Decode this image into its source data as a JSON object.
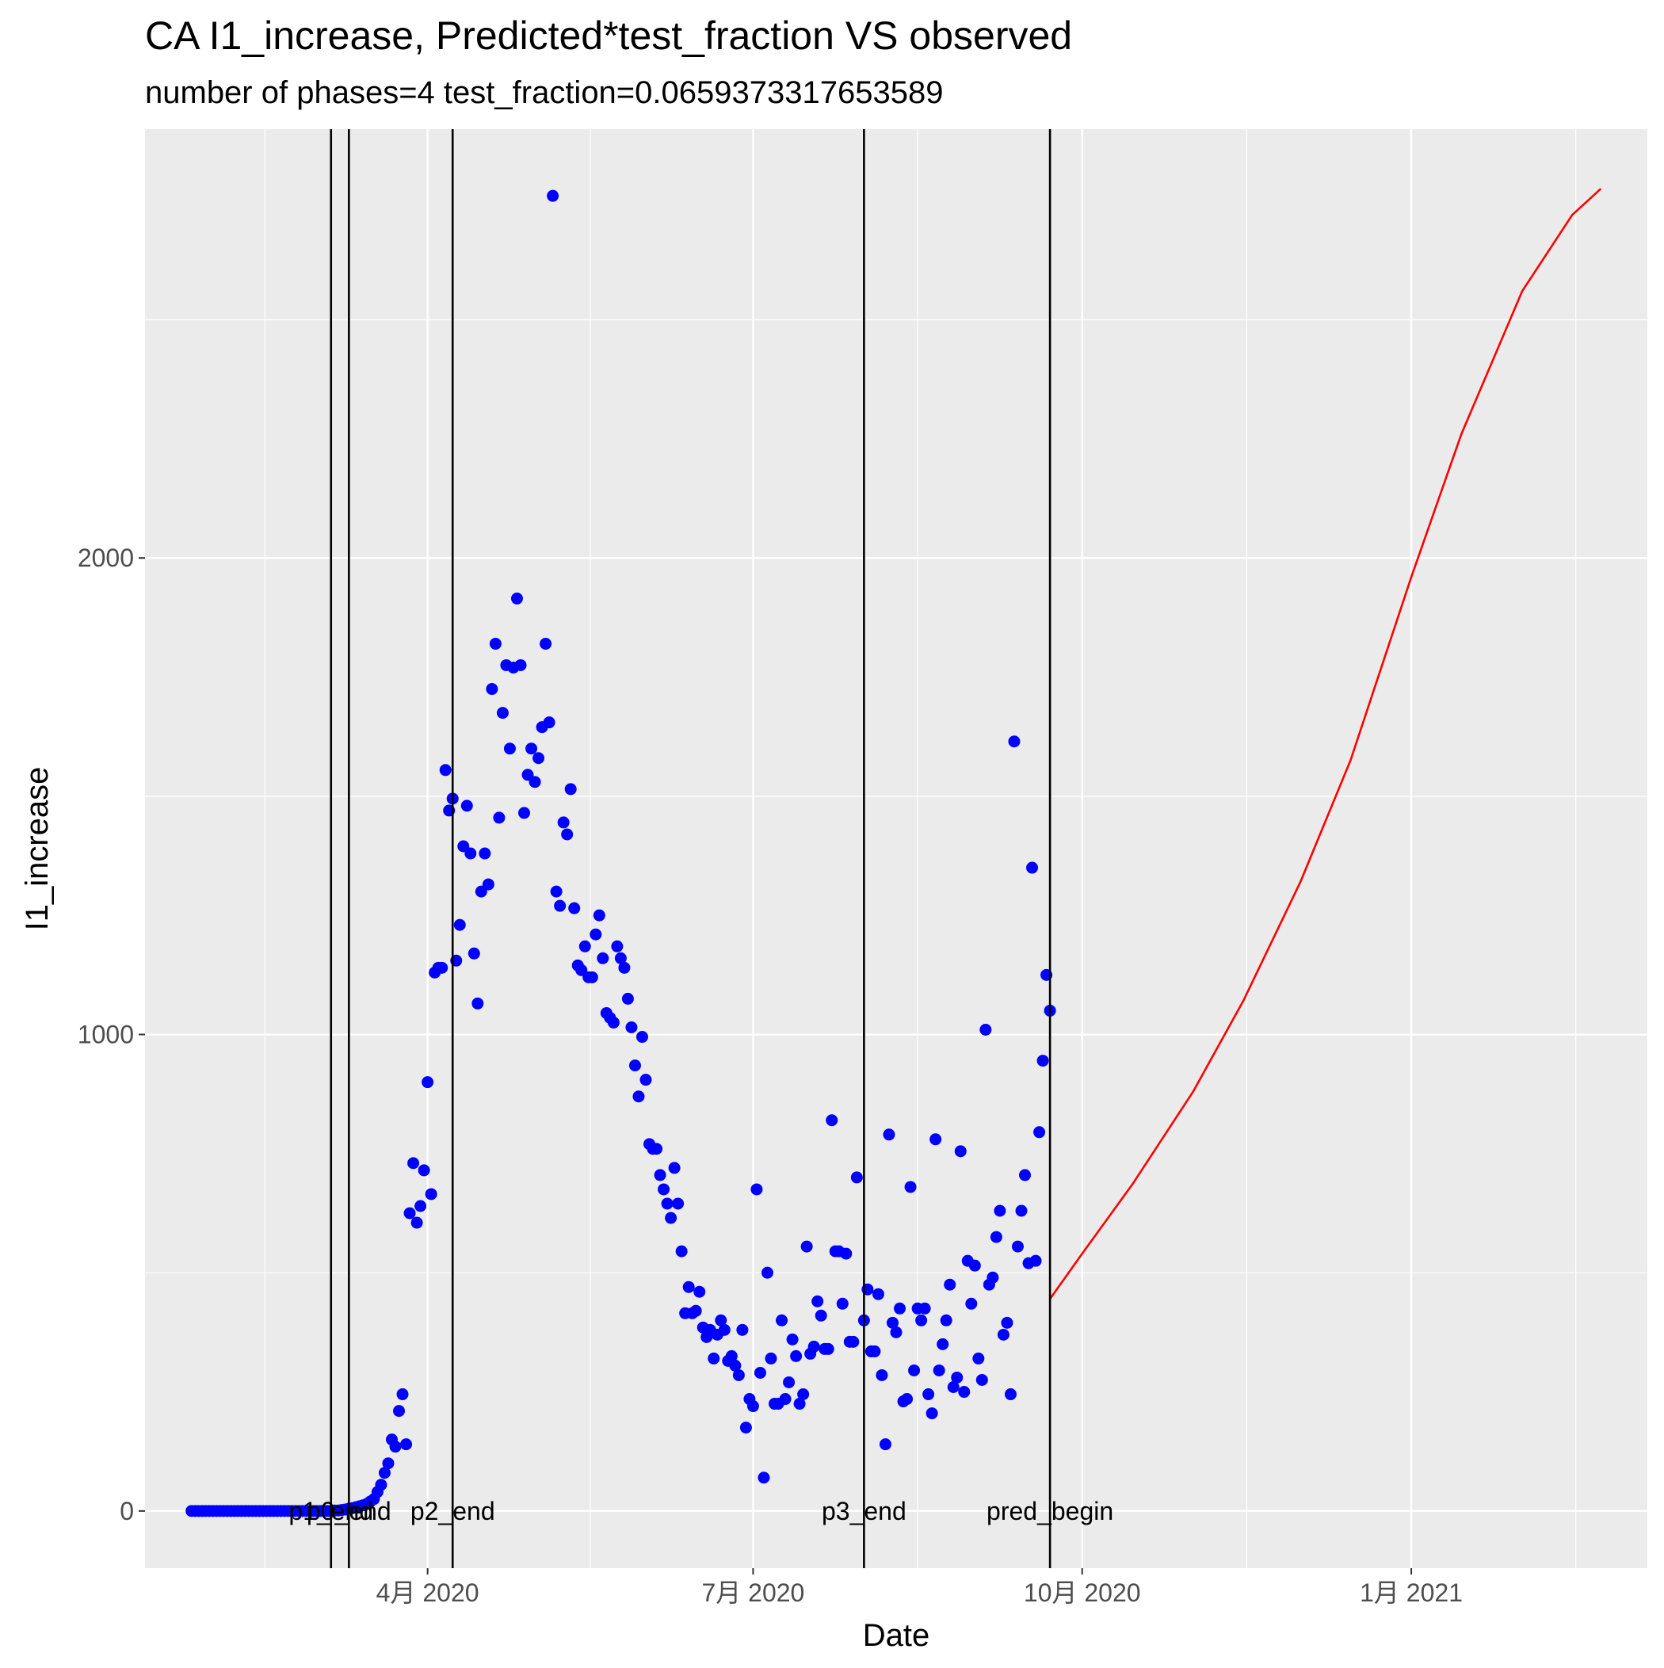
{
  "chart_data": {
    "type": "scatter",
    "title": "CA I1_increase, Predicted*test_fraction VS observed",
    "subtitle": "number of phases=4   test_fraction=0.0659373317653589",
    "xlabel": "Date",
    "ylabel": "I1_increase",
    "x_ticks": [
      {
        "date": "2020-04-01",
        "label": "4月 2020"
      },
      {
        "date": "2020-07-01",
        "label": "7月 2020"
      },
      {
        "date": "2020-10-01",
        "label": "10月 2020"
      },
      {
        "date": "2021-01-01",
        "label": "1月 2021"
      }
    ],
    "y_ticks": [
      0,
      1000,
      2000
    ],
    "xlim": [
      "2020-01-13",
      "2021-03-08"
    ],
    "ylim": [
      -120,
      2900
    ],
    "grid": true,
    "colors": {
      "panel": "#ebebeb",
      "grid": "#ffffff",
      "observed": "#0000ff",
      "predicted": "#ff0000",
      "vlines": "#000000"
    },
    "vlines": [
      {
        "date": "2020-03-05",
        "label": "p1_end"
      },
      {
        "date": "2020-03-10",
        "label": "p0_end"
      },
      {
        "date": "2020-04-08",
        "label": "p2_end"
      },
      {
        "date": "2020-08-01",
        "label": "p3_end"
      },
      {
        "date": "2020-09-22",
        "label": "pred_begin"
      }
    ],
    "series": [
      {
        "type": "scatter",
        "color": "#0000ff",
        "points": [
          [
            "2020-01-26",
            0
          ],
          [
            "2020-01-27",
            0
          ],
          [
            "2020-01-28",
            0
          ],
          [
            "2020-01-29",
            0
          ],
          [
            "2020-01-30",
            0
          ],
          [
            "2020-01-31",
            0
          ],
          [
            "2020-02-01",
            0
          ],
          [
            "2020-02-02",
            0
          ],
          [
            "2020-02-03",
            0
          ],
          [
            "2020-02-04",
            0
          ],
          [
            "2020-02-05",
            0
          ],
          [
            "2020-02-06",
            0
          ],
          [
            "2020-02-07",
            0
          ],
          [
            "2020-02-08",
            0
          ],
          [
            "2020-02-09",
            0
          ],
          [
            "2020-02-10",
            0
          ],
          [
            "2020-02-11",
            0
          ],
          [
            "2020-02-12",
            0
          ],
          [
            "2020-02-13",
            0
          ],
          [
            "2020-02-14",
            0
          ],
          [
            "2020-02-15",
            0
          ],
          [
            "2020-02-16",
            0
          ],
          [
            "2020-02-17",
            0
          ],
          [
            "2020-02-18",
            0
          ],
          [
            "2020-02-19",
            0
          ],
          [
            "2020-02-20",
            0
          ],
          [
            "2020-02-21",
            0
          ],
          [
            "2020-02-22",
            0
          ],
          [
            "2020-02-23",
            0
          ],
          [
            "2020-02-24",
            0
          ],
          [
            "2020-02-25",
            0
          ],
          [
            "2020-02-26",
            0
          ],
          [
            "2020-02-27",
            0
          ],
          [
            "2020-02-28",
            0
          ],
          [
            "2020-02-29",
            0
          ],
          [
            "2020-03-01",
            0
          ],
          [
            "2020-03-02",
            0
          ],
          [
            "2020-03-03",
            0
          ],
          [
            "2020-03-04",
            0
          ],
          [
            "2020-03-05",
            0
          ],
          [
            "2020-03-06",
            1
          ],
          [
            "2020-03-07",
            1
          ],
          [
            "2020-03-08",
            2
          ],
          [
            "2020-03-09",
            3
          ],
          [
            "2020-03-10",
            5
          ],
          [
            "2020-03-11",
            6
          ],
          [
            "2020-03-12",
            8
          ],
          [
            "2020-03-13",
            10
          ],
          [
            "2020-03-14",
            12
          ],
          [
            "2020-03-15",
            15
          ],
          [
            "2020-03-16",
            20
          ],
          [
            "2020-03-17",
            25
          ],
          [
            "2020-03-18",
            40
          ],
          [
            "2020-03-19",
            55
          ],
          [
            "2020-03-20",
            80
          ],
          [
            "2020-03-21",
            100
          ],
          [
            "2020-03-22",
            150
          ],
          [
            "2020-03-23",
            135
          ],
          [
            "2020-03-24",
            210
          ],
          [
            "2020-03-25",
            245
          ],
          [
            "2020-03-26",
            140
          ],
          [
            "2020-03-27",
            625
          ],
          [
            "2020-03-28",
            730
          ],
          [
            "2020-03-29",
            605
          ],
          [
            "2020-03-30",
            640
          ],
          [
            "2020-03-31",
            715
          ],
          [
            "2020-04-01",
            900
          ],
          [
            "2020-04-02",
            665
          ],
          [
            "2020-04-03",
            1130
          ],
          [
            "2020-04-04",
            1140
          ],
          [
            "2020-04-05",
            1140
          ],
          [
            "2020-04-06",
            1555
          ],
          [
            "2020-04-07",
            1470
          ],
          [
            "2020-04-08",
            1495
          ],
          [
            "2020-04-09",
            1155
          ],
          [
            "2020-04-10",
            1230
          ],
          [
            "2020-04-11",
            1395
          ],
          [
            "2020-04-12",
            1480
          ],
          [
            "2020-04-13",
            1380
          ],
          [
            "2020-04-14",
            1170
          ],
          [
            "2020-04-15",
            1065
          ],
          [
            "2020-04-16",
            1300
          ],
          [
            "2020-04-17",
            1380
          ],
          [
            "2020-04-18",
            1315
          ],
          [
            "2020-04-19",
            1725
          ],
          [
            "2020-04-20",
            1820
          ],
          [
            "2020-04-21",
            1455
          ],
          [
            "2020-04-22",
            1675
          ],
          [
            "2020-04-23",
            1775
          ],
          [
            "2020-04-24",
            1600
          ],
          [
            "2020-04-25",
            1770
          ],
          [
            "2020-04-26",
            1915
          ],
          [
            "2020-04-27",
            1775
          ],
          [
            "2020-04-28",
            1465
          ],
          [
            "2020-04-29",
            1545
          ],
          [
            "2020-04-30",
            1600
          ],
          [
            "2020-05-01",
            1530
          ],
          [
            "2020-05-02",
            1580
          ],
          [
            "2020-05-03",
            1645
          ],
          [
            "2020-05-04",
            1820
          ],
          [
            "2020-05-05",
            1655
          ],
          [
            "2020-05-06",
            2760
          ],
          [
            "2020-05-07",
            1300
          ],
          [
            "2020-05-08",
            1270
          ],
          [
            "2020-05-09",
            1445
          ],
          [
            "2020-05-10",
            1420
          ],
          [
            "2020-05-11",
            1515
          ],
          [
            "2020-05-12",
            1265
          ],
          [
            "2020-05-13",
            1145
          ],
          [
            "2020-05-14",
            1135
          ],
          [
            "2020-05-15",
            1185
          ],
          [
            "2020-05-16",
            1120
          ],
          [
            "2020-05-17",
            1120
          ],
          [
            "2020-05-18",
            1210
          ],
          [
            "2020-05-19",
            1250
          ],
          [
            "2020-05-20",
            1160
          ],
          [
            "2020-05-21",
            1045
          ],
          [
            "2020-05-22",
            1035
          ],
          [
            "2020-05-23",
            1025
          ],
          [
            "2020-05-24",
            1185
          ],
          [
            "2020-05-25",
            1160
          ],
          [
            "2020-05-26",
            1140
          ],
          [
            "2020-05-27",
            1075
          ],
          [
            "2020-05-28",
            1015
          ],
          [
            "2020-05-29",
            935
          ],
          [
            "2020-05-30",
            870
          ],
          [
            "2020-05-31",
            995
          ],
          [
            "2020-06-01",
            905
          ],
          [
            "2020-06-02",
            770
          ],
          [
            "2020-06-03",
            760
          ],
          [
            "2020-06-04",
            760
          ],
          [
            "2020-06-05",
            705
          ],
          [
            "2020-06-06",
            675
          ],
          [
            "2020-06-07",
            645
          ],
          [
            "2020-06-08",
            615
          ],
          [
            "2020-06-09",
            720
          ],
          [
            "2020-06-10",
            645
          ],
          [
            "2020-06-11",
            545
          ],
          [
            "2020-06-12",
            415
          ],
          [
            "2020-06-13",
            470
          ],
          [
            "2020-06-14",
            415
          ],
          [
            "2020-06-15",
            420
          ],
          [
            "2020-06-16",
            460
          ],
          [
            "2020-06-17",
            385
          ],
          [
            "2020-06-18",
            365
          ],
          [
            "2020-06-19",
            380
          ],
          [
            "2020-06-20",
            320
          ],
          [
            "2020-06-21",
            370
          ],
          [
            "2020-06-22",
            400
          ],
          [
            "2020-06-23",
            380
          ],
          [
            "2020-06-24",
            315
          ],
          [
            "2020-06-25",
            325
          ],
          [
            "2020-06-26",
            305
          ],
          [
            "2020-06-27",
            285
          ],
          [
            "2020-06-28",
            380
          ],
          [
            "2020-06-29",
            175
          ],
          [
            "2020-06-30",
            235
          ],
          [
            "2020-07-01",
            220
          ],
          [
            "2020-07-02",
            675
          ],
          [
            "2020-07-03",
            290
          ],
          [
            "2020-07-04",
            70
          ],
          [
            "2020-07-05",
            500
          ],
          [
            "2020-07-06",
            320
          ],
          [
            "2020-07-07",
            225
          ],
          [
            "2020-07-08",
            225
          ],
          [
            "2020-07-09",
            400
          ],
          [
            "2020-07-10",
            235
          ],
          [
            "2020-07-11",
            270
          ],
          [
            "2020-07-12",
            360
          ],
          [
            "2020-07-13",
            325
          ],
          [
            "2020-07-14",
            225
          ],
          [
            "2020-07-15",
            245
          ],
          [
            "2020-07-16",
            555
          ],
          [
            "2020-07-17",
            330
          ],
          [
            "2020-07-18",
            345
          ],
          [
            "2020-07-19",
            440
          ],
          [
            "2020-07-20",
            410
          ],
          [
            "2020-07-21",
            340
          ],
          [
            "2020-07-22",
            340
          ],
          [
            "2020-07-23",
            820
          ],
          [
            "2020-07-24",
            545
          ],
          [
            "2020-07-25",
            545
          ],
          [
            "2020-07-26",
            435
          ],
          [
            "2020-07-27",
            540
          ],
          [
            "2020-07-28",
            355
          ],
          [
            "2020-07-29",
            355
          ],
          [
            "2020-07-30",
            700
          ],
          [
            "2020-08-01",
            400
          ],
          [
            "2020-08-02",
            465
          ],
          [
            "2020-08-03",
            335
          ],
          [
            "2020-08-04",
            335
          ],
          [
            "2020-08-05",
            455
          ],
          [
            "2020-08-06",
            285
          ],
          [
            "2020-08-07",
            140
          ],
          [
            "2020-08-08",
            790
          ],
          [
            "2020-08-09",
            395
          ],
          [
            "2020-08-10",
            375
          ],
          [
            "2020-08-11",
            425
          ],
          [
            "2020-08-12",
            230
          ],
          [
            "2020-08-13",
            235
          ],
          [
            "2020-08-14",
            680
          ],
          [
            "2020-08-15",
            295
          ],
          [
            "2020-08-16",
            425
          ],
          [
            "2020-08-17",
            400
          ],
          [
            "2020-08-18",
            425
          ],
          [
            "2020-08-19",
            245
          ],
          [
            "2020-08-20",
            205
          ],
          [
            "2020-08-21",
            780
          ],
          [
            "2020-08-22",
            295
          ],
          [
            "2020-08-23",
            350
          ],
          [
            "2020-08-24",
            400
          ],
          [
            "2020-08-25",
            475
          ],
          [
            "2020-08-26",
            260
          ],
          [
            "2020-08-27",
            280
          ],
          [
            "2020-08-28",
            755
          ],
          [
            "2020-08-29",
            250
          ],
          [
            "2020-08-30",
            525
          ],
          [
            "2020-08-31",
            435
          ],
          [
            "2020-09-01",
            515
          ],
          [
            "2020-09-02",
            320
          ],
          [
            "2020-09-03",
            275
          ],
          [
            "2020-09-04",
            1010
          ],
          [
            "2020-09-05",
            475
          ],
          [
            "2020-09-06",
            490
          ],
          [
            "2020-09-07",
            575
          ],
          [
            "2020-09-08",
            630
          ],
          [
            "2020-09-09",
            370
          ],
          [
            "2020-09-10",
            395
          ],
          [
            "2020-09-11",
            245
          ],
          [
            "2020-09-12",
            1615
          ],
          [
            "2020-09-13",
            555
          ],
          [
            "2020-09-14",
            630
          ],
          [
            "2020-09-15",
            705
          ],
          [
            "2020-09-16",
            520
          ],
          [
            "2020-09-17",
            1350
          ],
          [
            "2020-09-18",
            525
          ],
          [
            "2020-09-19",
            795
          ],
          [
            "2020-09-20",
            945
          ],
          [
            "2020-09-21",
            1125
          ],
          [
            "2020-09-22",
            1050
          ]
        ]
      },
      {
        "type": "line",
        "color": "#ff0000",
        "points": [
          [
            "2020-09-22",
            445
          ],
          [
            "2020-10-01",
            540
          ],
          [
            "2020-10-15",
            685
          ],
          [
            "2020-11-01",
            880
          ],
          [
            "2020-11-15",
            1070
          ],
          [
            "2020-12-01",
            1320
          ],
          [
            "2020-12-15",
            1575
          ],
          [
            "2021-01-01",
            1960
          ],
          [
            "2021-01-15",
            2260
          ],
          [
            "2021-02-01",
            2560
          ],
          [
            "2021-02-15",
            2720
          ],
          [
            "2021-02-23",
            2775
          ]
        ]
      }
    ]
  }
}
